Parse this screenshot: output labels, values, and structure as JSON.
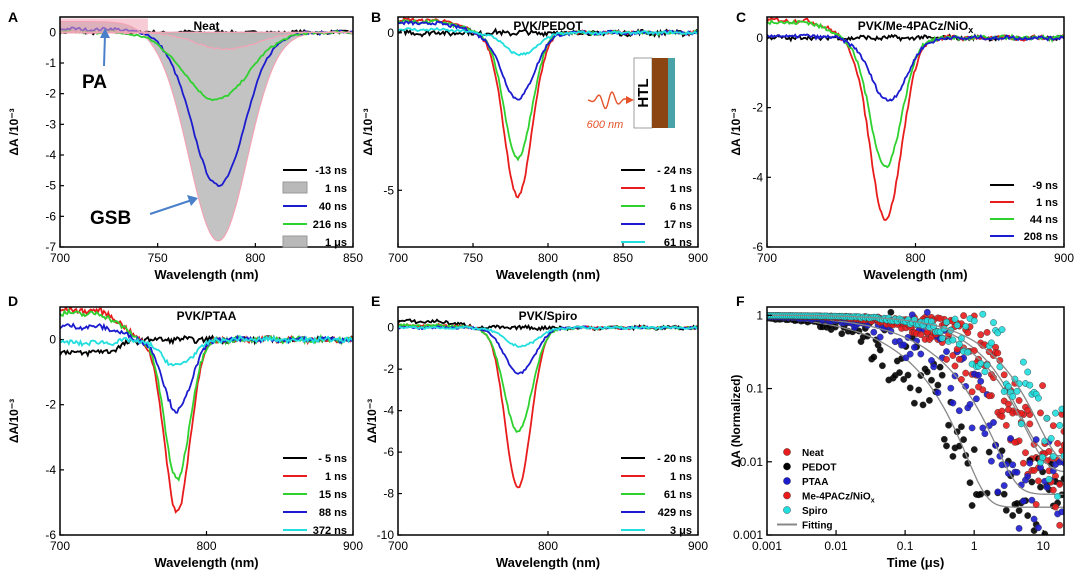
{
  "figure": {
    "colors": {
      "black": "#000000",
      "red": "#e81c1c",
      "green": "#2fd12f",
      "blue": "#1c1ccf",
      "cyan": "#22dede",
      "gray_fill": "#b9b9b9",
      "pink": "#f2a3b5",
      "arrow": "#4a7fc9",
      "htl_brown": "#8b4513",
      "htl_teal": "#4aa3a6",
      "pump": "#e5532a"
    }
  },
  "chart_data": [
    {
      "panel": "A",
      "type": "line",
      "title": "Neat",
      "xlabel": "Wavelength (nm)",
      "ylabel": "ΔA /10⁻³",
      "xlim": [
        700,
        850
      ],
      "ylim": [
        -7,
        0.5
      ],
      "xticks": [
        "700",
        "750",
        "800",
        "850"
      ],
      "yticks": [
        "0",
        "-1",
        "-2",
        "-3",
        "-4",
        "-5",
        "-6",
        "-7"
      ],
      "annotations": [
        "PA",
        "GSB"
      ],
      "series": [
        {
          "name": "-13 ns",
          "color": "#000000",
          "style": "line",
          "peak": 0.0,
          "center": 780,
          "width": 20,
          "pa": 0.0,
          "noise": 0.05
        },
        {
          "name": "1 ns",
          "color": "#b9b9b9",
          "style": "fill",
          "peak": -6.8,
          "center": 781,
          "width": 21,
          "pa": 0.35,
          "noise": 0.0
        },
        {
          "name": "40 ns",
          "color": "#1c1ccf",
          "style": "line",
          "peak": -5.0,
          "center": 781,
          "width": 19,
          "pa": 0.1,
          "noise": 0.05
        },
        {
          "name": "216 ns",
          "color": "#2fd12f",
          "style": "line",
          "peak": -2.2,
          "center": 780,
          "width": 23,
          "pa": 0.0,
          "noise": 0.04
        },
        {
          "name": "1 μs",
          "color": "#b9b9b9",
          "style": "fill",
          "peak": -0.55,
          "center": 785,
          "width": 22,
          "pa": 0.0,
          "noise": 0.03
        }
      ]
    },
    {
      "panel": "B",
      "type": "line",
      "title": "PVK/PEDOT",
      "xlabel": "Wavelength (nm)",
      "ylabel": "ΔA /10⁻³",
      "xlim": [
        700,
        900
      ],
      "ylim": [
        -6.8,
        0.5
      ],
      "xticks": [
        "700",
        "750",
        "800",
        "850",
        "900"
      ],
      "yticks": [
        "0",
        "-5"
      ],
      "inset": {
        "label": "HTL",
        "pump": "600 nm"
      },
      "series": [
        {
          "name": "- 24 ns",
          "color": "#000000",
          "peak": 0.0,
          "center": 780,
          "width": 12,
          "pa": 0.0,
          "noise": 0.08
        },
        {
          "name": "1 ns",
          "color": "#e81c1c",
          "peak": -5.2,
          "center": 780,
          "width": 13,
          "pa": 0.4,
          "noise": 0.05
        },
        {
          "name": "6 ns",
          "color": "#2fd12f",
          "peak": -4.0,
          "center": 780,
          "width": 13,
          "pa": 0.35,
          "noise": 0.05
        },
        {
          "name": "17 ns",
          "color": "#1c1ccf",
          "peak": -2.1,
          "center": 780,
          "width": 15,
          "pa": 0.3,
          "noise": 0.05
        },
        {
          "name": "61 ns",
          "color": "#22dede",
          "peak": -0.7,
          "center": 782,
          "width": 15,
          "pa": 0.1,
          "noise": 0.04
        }
      ]
    },
    {
      "panel": "C",
      "type": "line",
      "title": "PVK/Me-4PACz/NiO",
      "title_sub": "x",
      "xlabel": "Wavelength (nm)",
      "ylabel": "ΔA /10⁻³",
      "xlim": [
        700,
        900
      ],
      "ylim": [
        -6,
        0.6
      ],
      "xticks": [
        "700",
        "800",
        "900"
      ],
      "yticks": [
        "0",
        "-2",
        "-4",
        "-6"
      ],
      "series": [
        {
          "name": "-9 ns",
          "color": "#000000",
          "peak": 0.0,
          "center": 780,
          "width": 14,
          "pa": 0.0,
          "noise": 0.06
        },
        {
          "name": "1 ns",
          "color": "#e81c1c",
          "peak": -5.2,
          "center": 780,
          "width": 15,
          "pa": 0.5,
          "noise": 0.06
        },
        {
          "name": "44 ns",
          "color": "#2fd12f",
          "peak": -3.7,
          "center": 780,
          "width": 15,
          "pa": 0.45,
          "noise": 0.06
        },
        {
          "name": "208 ns",
          "color": "#1c1ccf",
          "peak": -1.8,
          "center": 782,
          "width": 17,
          "pa": 0.05,
          "noise": 0.05
        }
      ]
    },
    {
      "panel": "D",
      "type": "line",
      "title": "PVK/PTAA",
      "xlabel": "Wavelength (nm)",
      "ylabel": "ΔA/10⁻³",
      "xlim": [
        700,
        900
      ],
      "ylim": [
        -6,
        1
      ],
      "xticks": [
        "700",
        "800",
        "900"
      ],
      "yticks": [
        "0",
        "-2",
        "-4",
        "-6"
      ],
      "series": [
        {
          "name": "- 5 ns",
          "color": "#000000",
          "peak": 0.0,
          "center": 780,
          "width": 12,
          "pa": -0.4,
          "noise": 0.08
        },
        {
          "name": "1 ns",
          "color": "#e81c1c",
          "peak": -5.3,
          "center": 780,
          "width": 12,
          "pa": 0.9,
          "noise": 0.08
        },
        {
          "name": "15 ns",
          "color": "#2fd12f",
          "peak": -4.3,
          "center": 780,
          "width": 12,
          "pa": 0.8,
          "noise": 0.08
        },
        {
          "name": "88 ns",
          "color": "#1c1ccf",
          "peak": -2.2,
          "center": 780,
          "width": 13,
          "pa": 0.4,
          "noise": 0.07
        },
        {
          "name": "372 ns",
          "color": "#22dede",
          "peak": -0.8,
          "center": 780,
          "width": 15,
          "pa": -0.1,
          "noise": 0.07
        }
      ]
    },
    {
      "panel": "E",
      "type": "line",
      "title": "PVK/Spiro",
      "xlabel": "Wavelength (nm)",
      "ylabel": "ΔA/10⁻³",
      "xlim": [
        700,
        900
      ],
      "ylim": [
        -10,
        1
      ],
      "xticks": [
        "700",
        "800",
        "900"
      ],
      "yticks": [
        "0",
        "-2",
        "-4",
        "-6",
        "-8",
        "-10"
      ],
      "series": [
        {
          "name": "- 20 ns",
          "color": "#000000",
          "peak": 0.0,
          "center": 780,
          "width": 12,
          "pa": 0.3,
          "noise": 0.08
        },
        {
          "name": "1 ns",
          "color": "#e81c1c",
          "peak": -7.7,
          "center": 780,
          "width": 12,
          "pa": 0.1,
          "noise": 0.06
        },
        {
          "name": "61 ns",
          "color": "#2fd12f",
          "peak": -5.0,
          "center": 780,
          "width": 13,
          "pa": 0.1,
          "noise": 0.06
        },
        {
          "name": "429 ns",
          "color": "#1c1ccf",
          "peak": -2.2,
          "center": 781,
          "width": 14,
          "pa": 0.0,
          "noise": 0.05
        },
        {
          "name": "3 μs",
          "color": "#22dede",
          "peak": -0.9,
          "center": 782,
          "width": 15,
          "pa": 0.0,
          "noise": 0.05
        }
      ]
    },
    {
      "panel": "F",
      "type": "scatter",
      "scale": "log-log",
      "xlabel": "Time (μs)",
      "ylabel": "ΔA (Normalized)",
      "xlim": [
        0.001,
        20
      ],
      "ylim": [
        0.001,
        1.3
      ],
      "xticks": [
        "0.001",
        "0.01",
        "0.1",
        "1",
        "10"
      ],
      "yticks": [
        "1",
        "0.1",
        "0.01",
        "0.001"
      ],
      "series": [
        {
          "name": "Neat",
          "color": "#e81c1c",
          "tau": 0.9,
          "beta": 0.75,
          "floor": 0.02
        },
        {
          "name": "PEDOT",
          "color": "#000000",
          "tau": 0.06,
          "beta": 0.6,
          "floor": 0.004
        },
        {
          "name": "PTAA",
          "color": "#1c1ccf",
          "tau": 0.18,
          "beta": 0.6,
          "floor": 0.006
        },
        {
          "name": "Me-4PACz/NiO",
          "sub": "x",
          "color": "#e81c1c",
          "tau": 0.7,
          "beta": 0.65,
          "floor": 0.012
        },
        {
          "name": "Spiro",
          "color": "#22dede",
          "tau": 1.3,
          "beta": 0.7,
          "floor": 0.015
        },
        {
          "name": "Fitting",
          "color": "#888888",
          "style": "line"
        }
      ]
    }
  ]
}
